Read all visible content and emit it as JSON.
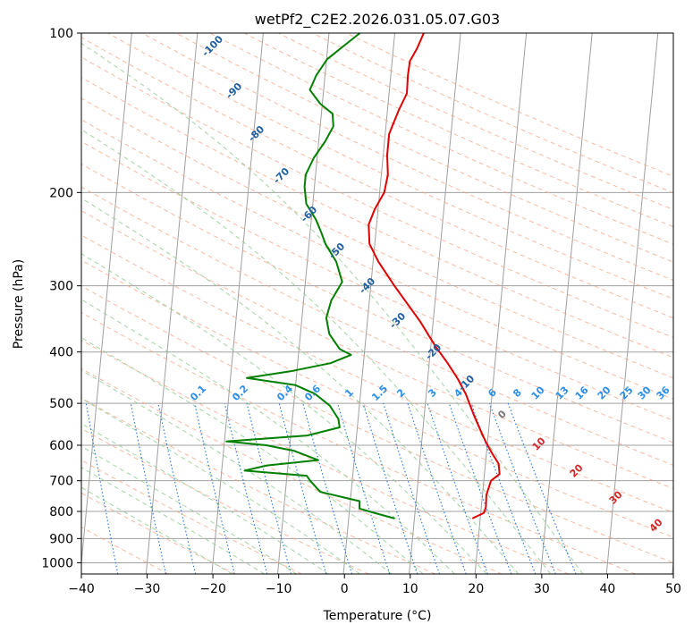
{
  "chart_data": {
    "type": "line",
    "title": "wetPf2_C2E2.2026.031.05.07.G03",
    "xlabel": "Temperature (°C)",
    "ylabel": "Pressure (hPa)",
    "xlim": [
      -40,
      50
    ],
    "ylim": [
      1050,
      100
    ],
    "y_scale": "log",
    "grid": true,
    "x_ticks": [
      "−40",
      "−30",
      "−20",
      "−10",
      "0",
      "10",
      "20",
      "30",
      "40",
      "50"
    ],
    "y_ticks": [
      {
        "p": 100,
        "label": "100"
      },
      {
        "p": 200,
        "label": "200"
      },
      {
        "p": 300,
        "label": "300"
      },
      {
        "p": 400,
        "label": "400"
      },
      {
        "p": 500,
        "label": "500"
      },
      {
        "p": 600,
        "label": "600"
      },
      {
        "p": 700,
        "label": "700"
      },
      {
        "p": 800,
        "label": "800"
      },
      {
        "p": 900,
        "label": "900"
      },
      {
        "p": 1000,
        "label": "1000"
      }
    ],
    "series": [
      {
        "color": "#e00000",
        "points": [
          [
            825,
            18.8
          ],
          [
            805,
            20.5
          ],
          [
            785,
            20.7
          ],
          [
            745,
            20.6
          ],
          [
            700,
            21.1
          ],
          [
            680,
            22.3
          ],
          [
            650,
            22.0
          ],
          [
            620,
            20.8
          ],
          [
            590,
            19.7
          ],
          [
            560,
            18.7
          ],
          [
            525,
            17.5
          ],
          [
            480,
            16.0
          ],
          [
            450,
            14.6
          ],
          [
            420,
            12.8
          ],
          [
            390,
            10.7
          ],
          [
            350,
            8.0
          ],
          [
            300,
            3.6
          ],
          [
            270,
            0.8
          ],
          [
            250,
            -0.8
          ],
          [
            230,
            -1.2
          ],
          [
            215,
            -0.5
          ],
          [
            200,
            0.7
          ],
          [
            185,
            1.0
          ],
          [
            170,
            0.6
          ],
          [
            155,
            0.6
          ],
          [
            140,
            1.7
          ],
          [
            130,
            2.7
          ],
          [
            120,
            2.6
          ],
          [
            113,
            2.7
          ],
          [
            107,
            3.6
          ],
          [
            100,
            4.4
          ]
        ]
      },
      {
        "color": "#008000",
        "points": [
          [
            825,
            7.0
          ],
          [
            805,
            3.8
          ],
          [
            790,
            1.5
          ],
          [
            765,
            1.4
          ],
          [
            735,
            -4.7
          ],
          [
            700,
            -6.4
          ],
          [
            685,
            -7.0
          ],
          [
            670,
            -16.5
          ],
          [
            655,
            -13.2
          ],
          [
            640,
            -5.5
          ],
          [
            615,
            -9.2
          ],
          [
            600,
            -13.6
          ],
          [
            590,
            -19.7
          ],
          [
            575,
            -7.5
          ],
          [
            555,
            -2.7
          ],
          [
            535,
            -3.0
          ],
          [
            505,
            -4.5
          ],
          [
            480,
            -6.9
          ],
          [
            462,
            -10.0
          ],
          [
            448,
            -17.5
          ],
          [
            435,
            -11.0
          ],
          [
            420,
            -5.0
          ],
          [
            405,
            -2.0
          ],
          [
            395,
            -3.8
          ],
          [
            370,
            -5.6
          ],
          [
            345,
            -6.3
          ],
          [
            320,
            -5.8
          ],
          [
            295,
            -4.4
          ],
          [
            270,
            -5.6
          ],
          [
            250,
            -7.5
          ],
          [
            238,
            -8.3
          ],
          [
            225,
            -9.3
          ],
          [
            210,
            -11.0
          ],
          [
            195,
            -11.5
          ],
          [
            185,
            -11.5
          ],
          [
            172,
            -10.5
          ],
          [
            160,
            -9.0
          ],
          [
            150,
            -8.0
          ],
          [
            142,
            -8.3
          ],
          [
            136,
            -10.3
          ],
          [
            128,
            -12.1
          ],
          [
            120,
            -11.3
          ],
          [
            112,
            -9.9
          ],
          [
            105,
            -7.3
          ],
          [
            100,
            -5.3
          ]
        ]
      }
    ],
    "annotations": {
      "dry_adiabat_labels": [
        "-100",
        "-90",
        "-80",
        "-70",
        "-60",
        "-50",
        "-40",
        "-30",
        "-20",
        "-10"
      ],
      "mixing_ratio_labels": [
        "0.1",
        "0.2",
        "0.4",
        "0.6",
        "1",
        "1.5",
        "2",
        "3",
        "4",
        "6",
        "8",
        "10",
        "13",
        "16",
        "20",
        "25",
        "30",
        "36"
      ],
      "moist_adiabat_labels": [
        "0",
        "10",
        "20",
        "30",
        "40"
      ]
    },
    "colors": {
      "temperature": "#e00000",
      "dewpoint": "#008000",
      "dry_adiabat": "#f4a384",
      "moist_adiabat": "#8cc98c",
      "mixing_ratio": "#1f77d8",
      "isotherm": "#a0a0a0",
      "dry_label": "#1f5fa0",
      "mix_label": "#2b8fe8",
      "moist_label": "#d62728"
    }
  }
}
